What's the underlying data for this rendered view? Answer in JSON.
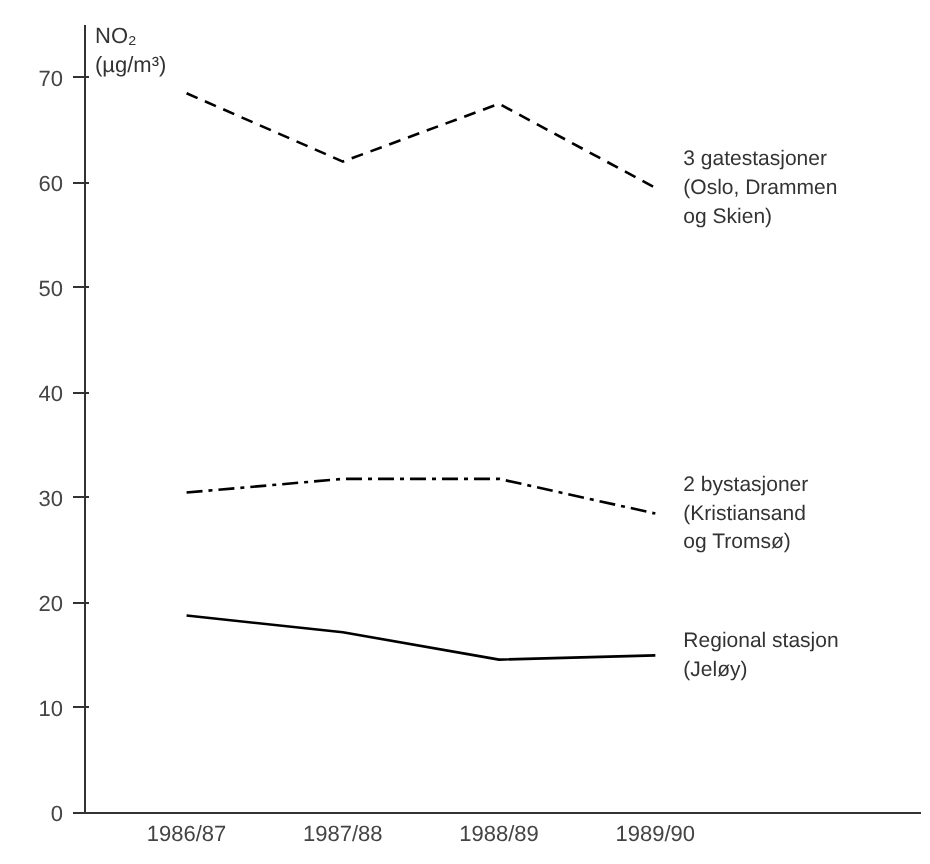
{
  "chart_data": {
    "type": "line",
    "ylabel": "NO₂\n(µg/m³)",
    "categories": [
      "1986/87",
      "1987/88",
      "1988/89",
      "1989/90"
    ],
    "series": [
      {
        "name": "3 gatestasjoner\n(Oslo, Drammen\nog Skien)",
        "color": "#000000",
        "line_style": "dashed",
        "values": [
          68.5,
          62,
          67.5,
          59.5
        ]
      },
      {
        "name": "2 bystasjoner\n(Kristiansand\nog Tromsø)",
        "color": "#000000",
        "line_style": "dashdot",
        "values": [
          30.5,
          31.8,
          31.8,
          28.5
        ]
      },
      {
        "name": "Regional stasjon\n(Jeløy)",
        "color": "#000000",
        "line_style": "solid",
        "values": [
          18.8,
          17.2,
          14.6,
          15.0
        ]
      }
    ],
    "ylim": [
      0,
      75
    ],
    "yticks": [
      0,
      10,
      20,
      30,
      40,
      50,
      60,
      70
    ]
  }
}
